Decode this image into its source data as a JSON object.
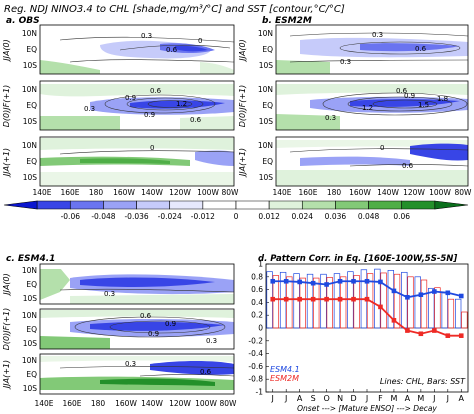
{
  "figure": {
    "title": "Reg.  NDJ NINO3.4 to CHL [shade,mg/m³/°C] and SST [contour,°C/°C]"
  },
  "panels": {
    "a": {
      "label": "a. OBS"
    },
    "b": {
      "label": "b. ESM2M"
    },
    "c": {
      "label": "c. ESM4.1"
    },
    "d": {
      "label": "d. Pattern Corr. in Eq. [160E-100W,5S-5N]"
    }
  },
  "season_labels": [
    "JJA(0)",
    "D(0)JF(+1)",
    "JJA(+1)"
  ],
  "lat_ticks": [
    "10N",
    "EQ",
    "10S"
  ],
  "lon_ticks": [
    "140E",
    "160E",
    "180",
    "160W",
    "140W",
    "120W",
    "100W",
    "80W"
  ],
  "contour_labels": {
    "a": [
      [
        "0.3",
        "0.6",
        "0"
      ],
      [
        "0.6",
        "0.9",
        "1.2",
        "0.3",
        "0.9",
        "0.6"
      ],
      [
        "0"
      ]
    ],
    "b": [
      [
        "0.3",
        "0.6",
        "0.3"
      ],
      [
        "0.6",
        "0.9",
        "1.5",
        "1.2",
        "1.8",
        "0.3"
      ],
      [
        "0",
        "0.6"
      ]
    ],
    "c": [
      [
        "0.3"
      ],
      [
        "0.6",
        "0.9",
        "0.9",
        "0.3"
      ],
      [
        "0.3",
        "0.6"
      ]
    ]
  },
  "colorbar": {
    "labels": [
      "-0.06",
      "-0.048",
      "-0.036",
      "-0.024",
      "-0.012",
      "0",
      "0.012",
      "0.024",
      "0.036",
      "0.048",
      "0.06"
    ],
    "colors": [
      "#0b16cf",
      "#3845e6",
      "#6a74f0",
      "#9aa2f6",
      "#c6cbfa",
      "#e6e8fd",
      "#ffffff",
      "#ffffff",
      "#dff2dc",
      "#b4e0ab",
      "#82c977",
      "#4fae47",
      "#23902a",
      "#0b6f1c"
    ]
  },
  "chart_data": {
    "type": "bar",
    "title": "d. Pattern Corr. in Eq. [160E-100W,5S-5N]",
    "categories": [
      "J",
      "J",
      "A",
      "S",
      "O",
      "N",
      "D",
      "J",
      "F",
      "M",
      "A",
      "M",
      "J",
      "J",
      "A"
    ],
    "ylim": [
      -1,
      1
    ],
    "yticks": [
      "1",
      "0.8",
      "0.6",
      "0.4",
      "0.2",
      "0",
      "-0.2",
      "-0.4",
      "-0.6",
      "-0.8",
      "-1"
    ],
    "xlabel": "Onset ---> [Mature ENSO] ---> Decay",
    "legend": {
      "esm41": "ESM4.1",
      "esm2m": "ESM2M",
      "note": "Lines: CHL, Bars: SST"
    },
    "series": [
      {
        "name": "ESM4.1",
        "kind": "bar",
        "color": "#1f49e0",
        "values": [
          0.88,
          0.87,
          0.85,
          0.84,
          0.84,
          0.85,
          0.88,
          0.91,
          0.92,
          0.9,
          0.87,
          0.8,
          0.62,
          0.55,
          0.45
        ]
      },
      {
        "name": "ESM2M",
        "kind": "bar",
        "color": "#ee2a25",
        "values": [
          0.82,
          0.8,
          0.78,
          0.78,
          0.79,
          0.8,
          0.82,
          0.85,
          0.86,
          0.84,
          0.8,
          0.75,
          0.63,
          0.45,
          0.25
        ]
      },
      {
        "name": "ESM4.1",
        "kind": "line",
        "color": "#1f49e0",
        "values": [
          0.73,
          0.73,
          0.72,
          0.7,
          0.68,
          0.73,
          0.73,
          0.73,
          0.72,
          0.58,
          0.48,
          0.52,
          0.57,
          0.55,
          0.5
        ]
      },
      {
        "name": "ESM2M",
        "kind": "line",
        "color": "#ee2a25",
        "values": [
          0.45,
          0.45,
          0.45,
          0.45,
          0.45,
          0.45,
          0.45,
          0.45,
          0.33,
          0.12,
          -0.04,
          -0.09,
          -0.04,
          -0.12,
          -0.12
        ]
      }
    ]
  }
}
